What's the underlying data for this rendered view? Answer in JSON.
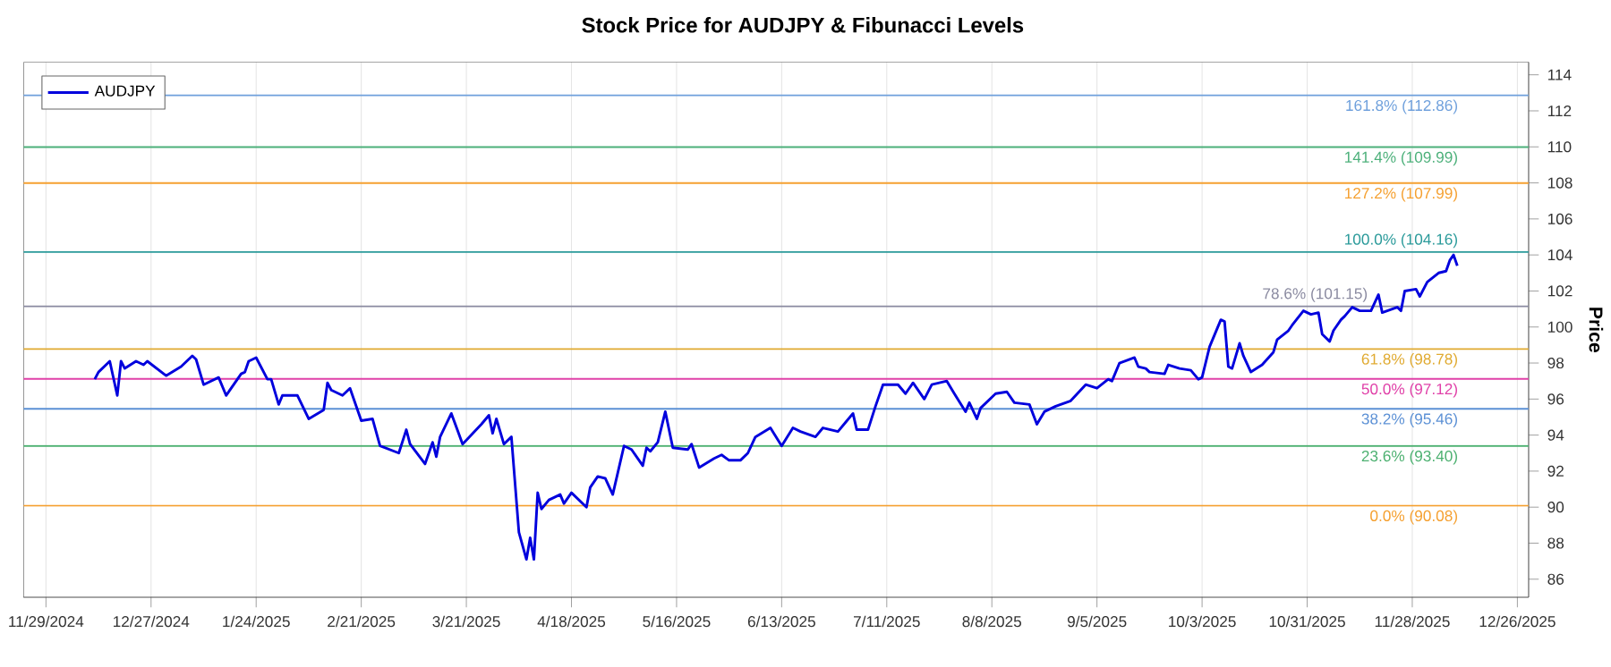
{
  "chart_data": {
    "type": "line",
    "title": "Stock Price for AUDJPY & Fibunacci Levels",
    "ylabel": "Price",
    "x": [
      "2024-12-12",
      "2024-12-13",
      "2024-12-16",
      "2024-12-18",
      "2024-12-19",
      "2024-12-20",
      "2024-12-23",
      "2024-12-25",
      "2024-12-26",
      "2024-12-31",
      "2025-01-04",
      "2025-01-07",
      "2025-01-08",
      "2025-01-10",
      "2025-01-14",
      "2025-01-16",
      "2025-01-20",
      "2025-01-21",
      "2025-01-22",
      "2025-01-24",
      "2025-01-27",
      "2025-01-28",
      "2025-01-30",
      "2025-01-31",
      "2025-02-04",
      "2025-02-07",
      "2025-02-11",
      "2025-02-12",
      "2025-02-13",
      "2025-02-16",
      "2025-02-18",
      "2025-02-21",
      "2025-02-24",
      "2025-02-26",
      "2025-03-03",
      "2025-03-05",
      "2025-03-06",
      "2025-03-10",
      "2025-03-12",
      "2025-03-13",
      "2025-03-14",
      "2025-03-17",
      "2025-03-20",
      "2025-03-25",
      "2025-03-27",
      "2025-03-28",
      "2025-03-29",
      "2025-03-31",
      "2025-04-02",
      "2025-04-04",
      "2025-04-06",
      "2025-04-07",
      "2025-04-08",
      "2025-04-09",
      "2025-04-10",
      "2025-04-12",
      "2025-04-15",
      "2025-04-16",
      "2025-04-18",
      "2025-04-22",
      "2025-04-23",
      "2025-04-25",
      "2025-04-27",
      "2025-04-29",
      "2025-05-02",
      "2025-05-04",
      "2025-05-07",
      "2025-05-08",
      "2025-05-09",
      "2025-05-11",
      "2025-05-13",
      "2025-05-15",
      "2025-05-19",
      "2025-05-20",
      "2025-05-22",
      "2025-05-26",
      "2025-05-28",
      "2025-05-30",
      "2025-06-02",
      "2025-06-04",
      "2025-06-06",
      "2025-06-10",
      "2025-06-13",
      "2025-06-16",
      "2025-06-18",
      "2025-06-22",
      "2025-06-24",
      "2025-06-28",
      "2025-06-30",
      "2025-07-02",
      "2025-07-03",
      "2025-07-06",
      "2025-07-08",
      "2025-07-10",
      "2025-07-14",
      "2025-07-16",
      "2025-07-18",
      "2025-07-21",
      "2025-07-23",
      "2025-07-27",
      "2025-07-29",
      "2025-08-01",
      "2025-08-02",
      "2025-08-04",
      "2025-08-05",
      "2025-08-09",
      "2025-08-12",
      "2025-08-14",
      "2025-08-18",
      "2025-08-20",
      "2025-08-22",
      "2025-08-25",
      "2025-08-29",
      "2025-09-02",
      "2025-09-05",
      "2025-09-08",
      "2025-09-09",
      "2025-09-11",
      "2025-09-15",
      "2025-09-16",
      "2025-09-18",
      "2025-09-19",
      "2025-09-23",
      "2025-09-24",
      "2025-09-27",
      "2025-09-30",
      "2025-10-02",
      "2025-10-03",
      "2025-10-05",
      "2025-10-08",
      "2025-10-09",
      "2025-10-10",
      "2025-10-11",
      "2025-10-13",
      "2025-10-14",
      "2025-10-16",
      "2025-10-19",
      "2025-10-22",
      "2025-10-23",
      "2025-10-26",
      "2025-10-27",
      "2025-10-30",
      "2025-11-01",
      "2025-11-03",
      "2025-11-04",
      "2025-11-06",
      "2025-11-07",
      "2025-11-09",
      "2025-11-10",
      "2025-11-12",
      "2025-11-14",
      "2025-11-17",
      "2025-11-19",
      "2025-11-20",
      "2025-11-24",
      "2025-11-25",
      "2025-11-26",
      "2025-11-29",
      "2025-11-30",
      "2025-12-02",
      "2025-12-05",
      "2025-12-07",
      "2025-12-08",
      "2025-12-09",
      "2025-12-10"
    ],
    "series": [
      {
        "name": "AUDJPY",
        "color": "#0000dd",
        "values": [
          97.1,
          97.5,
          98.1,
          96.2,
          98.1,
          97.7,
          98.1,
          97.9,
          98.1,
          97.3,
          97.8,
          98.4,
          98.2,
          96.8,
          97.2,
          96.2,
          97.4,
          97.5,
          98.1,
          98.3,
          97.1,
          97.1,
          95.7,
          96.2,
          96.2,
          94.9,
          95.4,
          96.9,
          96.5,
          96.2,
          96.6,
          94.8,
          94.9,
          93.4,
          93.0,
          94.3,
          93.5,
          92.4,
          93.6,
          92.8,
          93.9,
          95.2,
          93.5,
          94.6,
          95.1,
          94.1,
          94.9,
          93.5,
          93.9,
          88.6,
          87.1,
          88.3,
          87.1,
          90.8,
          89.9,
          90.4,
          90.7,
          90.2,
          90.8,
          90.0,
          91.1,
          91.7,
          91.6,
          90.7,
          93.4,
          93.2,
          92.3,
          93.3,
          93.1,
          93.6,
          95.3,
          93.3,
          93.2,
          93.5,
          92.2,
          92.7,
          92.9,
          92.6,
          92.6,
          93.0,
          93.9,
          94.4,
          93.4,
          94.4,
          94.2,
          93.9,
          94.4,
          94.2,
          94.7,
          95.2,
          94.3,
          94.3,
          95.6,
          96.8,
          96.8,
          96.3,
          96.9,
          96.0,
          96.8,
          97.0,
          96.3,
          95.3,
          95.8,
          94.9,
          95.5,
          96.3,
          96.4,
          95.8,
          95.7,
          94.6,
          95.3,
          95.6,
          95.9,
          96.8,
          96.6,
          97.1,
          97.0,
          98.0,
          98.3,
          97.8,
          97.7,
          97.5,
          97.4,
          97.9,
          97.7,
          97.6,
          97.1,
          97.2,
          98.9,
          100.4,
          100.3,
          97.8,
          97.7,
          99.1,
          98.4,
          97.5,
          97.9,
          98.6,
          99.3,
          99.8,
          100.1,
          100.9,
          100.7,
          100.8,
          99.6,
          99.2,
          99.8,
          100.4,
          100.6,
          101.1,
          100.9,
          100.9,
          101.8,
          100.8,
          101.1,
          100.9,
          102.0,
          102.1,
          101.7,
          102.5,
          103.0,
          103.1,
          103.7,
          104.0,
          103.4
        ]
      }
    ],
    "xlim": [
      "2024-11-23",
      "2025-12-29"
    ],
    "xticks": [
      {
        "value": "2024-11-29",
        "label": "11/29/2024"
      },
      {
        "value": "2024-12-27",
        "label": "12/27/2024"
      },
      {
        "value": "2025-01-24",
        "label": "1/24/2025"
      },
      {
        "value": "2025-02-21",
        "label": "2/21/2025"
      },
      {
        "value": "2025-03-21",
        "label": "3/21/2025"
      },
      {
        "value": "2025-04-18",
        "label": "4/18/2025"
      },
      {
        "value": "2025-05-16",
        "label": "5/16/2025"
      },
      {
        "value": "2025-06-13",
        "label": "6/13/2025"
      },
      {
        "value": "2025-07-11",
        "label": "7/11/2025"
      },
      {
        "value": "2025-08-08",
        "label": "8/8/2025"
      },
      {
        "value": "2025-09-05",
        "label": "9/5/2025"
      },
      {
        "value": "2025-10-03",
        "label": "10/3/2025"
      },
      {
        "value": "2025-10-31",
        "label": "10/31/2025"
      },
      {
        "value": "2025-11-28",
        "label": "11/28/2025"
      },
      {
        "value": "2025-12-26",
        "label": "12/26/2025"
      }
    ],
    "ylim": [
      85,
      114.7
    ],
    "yticks": [
      86,
      88,
      90,
      92,
      94,
      96,
      98,
      100,
      102,
      104,
      106,
      108,
      110,
      112,
      114
    ],
    "ref_lines": [
      {
        "axis": "y",
        "value": 112.86,
        "label": "161.8% (112.86)",
        "color": "#6fa0dc"
      },
      {
        "axis": "y",
        "value": 109.99,
        "label": "141.4% (109.99)",
        "color": "#4cb07a"
      },
      {
        "axis": "y",
        "value": 107.99,
        "label": "127.2% (107.99)",
        "color": "#f5a030"
      },
      {
        "axis": "y",
        "value": 104.16,
        "label": "100.0% (104.16)",
        "color": "#2a9a9a"
      },
      {
        "axis": "y",
        "value": 101.15,
        "label": "78.6% (101.15)",
        "color": "#8a8aa0"
      },
      {
        "axis": "y",
        "value": 98.78,
        "label": "61.8% (98.78)",
        "color": "#e0aa30"
      },
      {
        "axis": "y",
        "value": 97.12,
        "label": "50.0% (97.12)",
        "color": "#e040a8"
      },
      {
        "axis": "y",
        "value": 95.46,
        "label": "38.2% (95.46)",
        "color": "#5b90d5"
      },
      {
        "axis": "y",
        "value": 93.4,
        "label": "23.6% (93.40)",
        "color": "#4cb070"
      },
      {
        "axis": "y",
        "value": 90.08,
        "label": "0.0% (90.08)",
        "color": "#f5a030"
      }
    ],
    "grid": "x",
    "legend": "top left",
    "line_style": "solid",
    "marker": "none"
  }
}
